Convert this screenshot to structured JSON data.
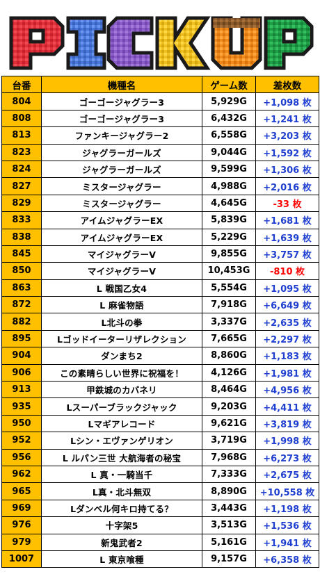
{
  "banner": {
    "logo_text": "PICKUP"
  },
  "colors": {
    "header_bg": "#ffc000",
    "positive": "#1f3fd0",
    "negative": "#ff0000"
  },
  "table": {
    "headers": [
      "台番",
      "機種名",
      "ゲーム数",
      "差枚数"
    ],
    "rows": [
      {
        "no": "804",
        "name": "ゴーゴージャグラー3",
        "games": "5,929G",
        "diff": "+1,098 枚"
      },
      {
        "no": "808",
        "name": "ゴーゴージャグラー3",
        "games": "6,432G",
        "diff": "+1,241 枚"
      },
      {
        "no": "813",
        "name": "ファンキージャグラー2",
        "games": "6,558G",
        "diff": "+3,203 枚"
      },
      {
        "no": "823",
        "name": "ジャグラーガールズ",
        "games": "9,044G",
        "diff": "+1,592 枚"
      },
      {
        "no": "824",
        "name": "ジャグラーガールズ",
        "games": "9,599G",
        "diff": "+1,306 枚"
      },
      {
        "no": "827",
        "name": "ミスタージャグラー",
        "games": "4,988G",
        "diff": "+2,016 枚"
      },
      {
        "no": "829",
        "name": "ミスタージャグラー",
        "games": "4,645G",
        "diff": "-33 枚"
      },
      {
        "no": "833",
        "name": "アイムジャグラーEX",
        "games": "5,839G",
        "diff": "+1,681 枚"
      },
      {
        "no": "838",
        "name": "アイムジャグラーEX",
        "games": "5,229G",
        "diff": "+1,639 枚"
      },
      {
        "no": "845",
        "name": "マイジャグラーV",
        "games": "9,855G",
        "diff": "+3,757 枚"
      },
      {
        "no": "850",
        "name": "マイジャグラーV",
        "games": "10,453G",
        "diff": "-810 枚"
      },
      {
        "no": "863",
        "name": "L 戦国乙女4",
        "games": "5,554G",
        "diff": "+1,095 枚"
      },
      {
        "no": "872",
        "name": "L 麻雀物語",
        "games": "7,918G",
        "diff": "+6,649 枚"
      },
      {
        "no": "882",
        "name": "L北斗の拳",
        "games": "3,337G",
        "diff": "+2,635 枚"
      },
      {
        "no": "895",
        "name": "Lゴッドイーターリザレクション",
        "games": "7,665G",
        "diff": "+2,297 枚"
      },
      {
        "no": "904",
        "name": "ダンまち2",
        "games": "8,860G",
        "diff": "+1,183 枚"
      },
      {
        "no": "906",
        "name": "この素晴らしい世界に祝福を！",
        "games": "4,126G",
        "diff": "+1,981 枚"
      },
      {
        "no": "913",
        "name": "甲鉄城のカバネリ",
        "games": "8,464G",
        "diff": "+4,956 枚"
      },
      {
        "no": "935",
        "name": "Lスーパーブラックジャック",
        "games": "9,203G",
        "diff": "+4,411 枚"
      },
      {
        "no": "950",
        "name": "Lマギアレコード",
        "games": "9,621G",
        "diff": "+3,819 枚"
      },
      {
        "no": "952",
        "name": "Lシン・エヴァンゲリオン",
        "games": "3,719G",
        "diff": "+1,998 枚"
      },
      {
        "no": "956",
        "name": "L ルパン三世 大航海者の秘宝",
        "games": "7,968G",
        "diff": "+6,273 枚"
      },
      {
        "no": "962",
        "name": "L 真・一騎当千",
        "games": "7,333G",
        "diff": "+2,675 枚"
      },
      {
        "no": "965",
        "name": "L真・北斗無双",
        "games": "8,890G",
        "diff": "+10,558 枚"
      },
      {
        "no": "969",
        "name": "Lダンベル何キロ持てる？",
        "games": "3,443G",
        "diff": "+1,198 枚"
      },
      {
        "no": "976",
        "name": "十字架5",
        "games": "3,513G",
        "diff": "+1,536 枚"
      },
      {
        "no": "979",
        "name": "新鬼武者2",
        "games": "5,161G",
        "diff": "+1,941 枚"
      },
      {
        "no": "1007",
        "name": "L 東京喰種",
        "games": "9,157G",
        "diff": "+6,358 枚"
      }
    ]
  }
}
